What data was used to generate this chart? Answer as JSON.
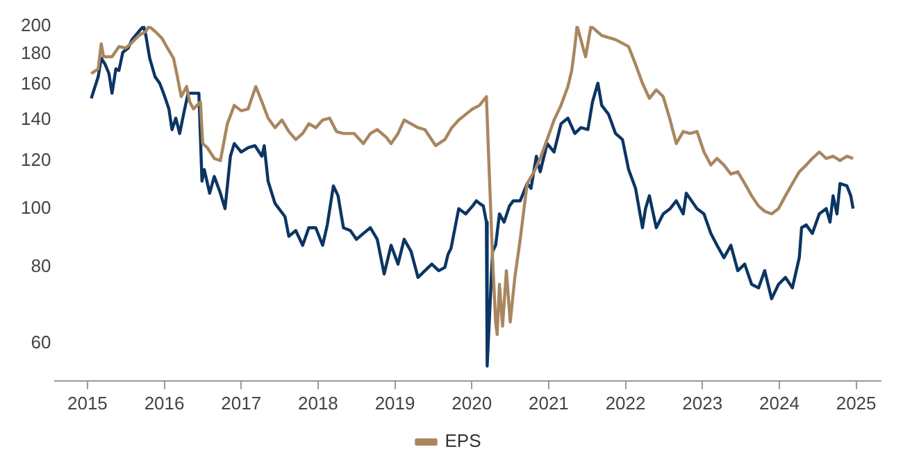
{
  "chart_data": {
    "type": "line",
    "log": true,
    "grid": false,
    "legend": "bottom",
    "marker": "none",
    "line_style": "solid",
    "xlim": [
      2014.58,
      2025.32
    ],
    "xticks": [
      2015,
      2016,
      2017,
      2018,
      2019,
      2020,
      2021,
      2022,
      2023,
      2024,
      2025
    ],
    "ylim": [
      52,
      200
    ],
    "yticks": [
      60,
      80,
      100,
      120,
      140,
      160,
      180,
      200
    ],
    "series": [
      {
        "name": "EPS",
        "color": "#a88660",
        "x": [
          2015.05,
          2015.14,
          2015.18,
          2015.21,
          2015.32,
          2015.41,
          2015.5,
          2015.58,
          2015.67,
          2015.76,
          2015.8,
          2015.88,
          2015.97,
          2016.03,
          2016.12,
          2016.17,
          2016.22,
          2016.29,
          2016.33,
          2016.38,
          2016.47,
          2016.5,
          2016.56,
          2016.65,
          2016.73,
          2016.82,
          2016.91,
          2017.0,
          2017.09,
          2017.19,
          2017.27,
          2017.35,
          2017.44,
          2017.53,
          2017.62,
          2017.71,
          2017.8,
          2017.88,
          2017.97,
          2018.06,
          2018.15,
          2018.24,
          2018.33,
          2018.47,
          2018.59,
          2018.68,
          2018.77,
          2018.89,
          2018.95,
          2019.04,
          2019.12,
          2019.21,
          2019.3,
          2019.39,
          2019.53,
          2019.65,
          2019.74,
          2019.83,
          2019.92,
          2020.01,
          2020.1,
          2020.19,
          2020.22,
          2020.27,
          2020.31,
          2020.33,
          2020.36,
          2020.4,
          2020.45,
          2020.5,
          2020.56,
          2020.63,
          2020.72,
          2020.81,
          2020.89,
          2020.98,
          2021.07,
          2021.16,
          2021.25,
          2021.3,
          2021.34,
          2021.37,
          2021.48,
          2021.55,
          2021.69,
          2021.87,
          2022.04,
          2022.13,
          2022.22,
          2022.31,
          2022.4,
          2022.49,
          2022.58,
          2022.66,
          2022.75,
          2022.84,
          2022.93,
          2023.02,
          2023.11,
          2023.19,
          2023.28,
          2023.37,
          2023.46,
          2023.55,
          2023.64,
          2023.73,
          2023.81,
          2023.9,
          2023.99,
          2024.08,
          2024.17,
          2024.26,
          2024.35,
          2024.43,
          2024.52,
          2024.61,
          2024.7,
          2024.79,
          2024.88,
          2024.96
        ],
        "values": [
          167,
          170,
          187,
          178,
          178,
          185,
          184,
          188,
          193,
          196,
          200,
          196,
          191,
          185,
          177,
          165,
          153,
          159,
          150,
          146,
          150,
          128,
          126,
          121,
          120,
          138,
          148,
          145,
          146,
          159,
          150,
          141,
          136,
          140,
          134,
          130,
          133,
          138,
          136,
          140,
          141,
          134,
          133,
          133,
          128,
          133,
          135,
          131,
          128,
          133,
          140,
          138,
          136,
          135,
          127,
          130,
          136,
          140,
          143,
          146,
          148,
          153,
          121,
          83,
          65,
          62,
          75,
          64,
          79,
          65,
          77,
          89,
          110,
          115,
          121,
          130,
          140,
          148,
          159,
          169,
          185,
          200,
          178,
          200,
          193,
          190,
          185,
          173,
          161,
          152,
          157,
          153,
          140,
          128,
          134,
          133,
          134,
          124,
          118,
          121,
          118,
          114,
          115,
          110,
          105,
          101,
          99,
          98,
          100,
          105,
          110,
          115,
          118,
          121,
          124,
          121,
          122,
          120,
          122,
          121
        ]
      },
      {
        "color": "#0b3563",
        "x": [
          2015.05,
          2015.14,
          2015.18,
          2015.23,
          2015.28,
          2015.32,
          2015.37,
          2015.41,
          2015.46,
          2015.53,
          2015.58,
          2015.67,
          2015.73,
          2015.76,
          2015.81,
          2015.88,
          2015.94,
          2015.99,
          2016.06,
          2016.1,
          2016.15,
          2016.2,
          2016.26,
          2016.31,
          2016.45,
          2016.49,
          2016.52,
          2016.59,
          2016.65,
          2016.73,
          2016.79,
          2016.86,
          2016.91,
          2017.0,
          2017.09,
          2017.18,
          2017.27,
          2017.3,
          2017.35,
          2017.44,
          2017.57,
          2017.62,
          2017.71,
          2017.8,
          2017.88,
          2017.97,
          2018.06,
          2018.12,
          2018.2,
          2018.26,
          2018.33,
          2018.42,
          2018.5,
          2018.59,
          2018.68,
          2018.77,
          2018.86,
          2018.95,
          2019.04,
          2019.12,
          2019.21,
          2019.3,
          2019.39,
          2019.48,
          2019.57,
          2019.65,
          2019.69,
          2019.73,
          2019.83,
          2019.92,
          2020.01,
          2020.06,
          2020.1,
          2020.15,
          2020.19,
          2020.2,
          2020.27,
          2020.31,
          2020.36,
          2020.42,
          2020.49,
          2020.54,
          2020.63,
          2020.72,
          2020.77,
          2020.84,
          2020.89,
          2020.98,
          2021.07,
          2021.16,
          2021.25,
          2021.34,
          2021.42,
          2021.51,
          2021.57,
          2021.64,
          2021.69,
          2021.78,
          2021.87,
          2021.96,
          2022.04,
          2022.13,
          2022.22,
          2022.26,
          2022.31,
          2022.4,
          2022.49,
          2022.58,
          2022.66,
          2022.75,
          2022.79,
          2022.93,
          2023.02,
          2023.11,
          2023.19,
          2023.28,
          2023.37,
          2023.46,
          2023.55,
          2023.64,
          2023.73,
          2023.81,
          2023.9,
          2023.99,
          2024.08,
          2024.17,
          2024.26,
          2024.29,
          2024.35,
          2024.43,
          2024.52,
          2024.61,
          2024.66,
          2024.7,
          2024.75,
          2024.79,
          2024.88,
          2024.93,
          2024.96
        ],
        "values": [
          152,
          165,
          177,
          173,
          167,
          155,
          170,
          169,
          181,
          184,
          190,
          196,
          200,
          193,
          177,
          165,
          161,
          155,
          146,
          135,
          141,
          133,
          145,
          155,
          155,
          111,
          116,
          106,
          113,
          106,
          100,
          122,
          128,
          124,
          126,
          127,
          122,
          127,
          111,
          102,
          97,
          90,
          92,
          87,
          93,
          93,
          87,
          94,
          109,
          105,
          93,
          92,
          89,
          91,
          93,
          89,
          78,
          87,
          81,
          89,
          85,
          77,
          79,
          81,
          79,
          80,
          84,
          86,
          100,
          98,
          101,
          103,
          102,
          101,
          95,
          55,
          85,
          87,
          98,
          95,
          101,
          103,
          103,
          110,
          108,
          122,
          115,
          128,
          124,
          138,
          141,
          133,
          136,
          135,
          150,
          161,
          148,
          143,
          133,
          130,
          116,
          108,
          93,
          100,
          105,
          93,
          98,
          100,
          103,
          98,
          106,
          100,
          98,
          91,
          87,
          83,
          87,
          79,
          81,
          75,
          74,
          79,
          71,
          75,
          77,
          74,
          83,
          93,
          94,
          91,
          98,
          100,
          95,
          105,
          98,
          110,
          109,
          105,
          100
        ]
      }
    ]
  }
}
